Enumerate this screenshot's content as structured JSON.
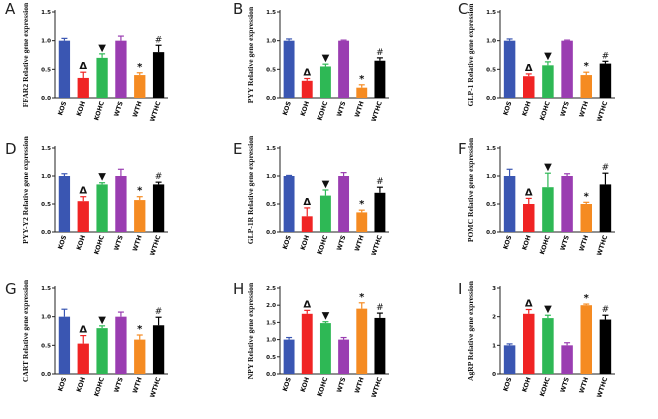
{
  "figure": {
    "colors": [
      "#3a56b2",
      "#f02424",
      "#2eb855",
      "#9a3db1",
      "#f58b22",
      "#000000"
    ],
    "marker_icons": [
      "delta-triangle-icon",
      "filled-down-triangle-icon",
      "asterisk-icon",
      "hash-icon"
    ]
  },
  "chart_data": [
    {
      "type": "bar",
      "panel": "A",
      "ylabel": "FFAR2 Relative gene expression",
      "categories": [
        "KOS",
        "KOH",
        "KOHC",
        "WTS",
        "WTH",
        "WTHC"
      ],
      "values": [
        1.0,
        0.35,
        0.7,
        1.0,
        0.4,
        0.8
      ],
      "errors": [
        0.04,
        0.1,
        0.07,
        0.08,
        0.04,
        0.12
      ],
      "markers": [
        "",
        "Δ",
        "▼",
        "",
        "*",
        "#"
      ],
      "yticks": [
        "0.0",
        "0.5",
        "1.0",
        "1.5"
      ],
      "ylim": [
        0,
        1.5
      ]
    },
    {
      "type": "bar",
      "panel": "B",
      "ylabel": "PYY Relative gene expression",
      "categories": [
        "KOS",
        "KOH",
        "KOHC",
        "WTS",
        "WTH",
        "WTHC"
      ],
      "values": [
        1.0,
        0.3,
        0.55,
        1.0,
        0.18,
        0.65
      ],
      "errors": [
        0.03,
        0.04,
        0.04,
        0.01,
        0.05,
        0.05
      ],
      "markers": [
        "",
        "Δ",
        "▼",
        "",
        "*",
        "#"
      ],
      "yticks": [
        "0.0",
        "0.5",
        "1.0",
        "1.5"
      ],
      "ylim": [
        0,
        1.5
      ]
    },
    {
      "type": "bar",
      "panel": "C",
      "ylabel": "GLP-1 Relative gene expression",
      "categories": [
        "KOS",
        "KOH",
        "KOHC",
        "WTS",
        "WTH",
        "WTHC"
      ],
      "values": [
        1.0,
        0.38,
        0.57,
        1.0,
        0.4,
        0.6
      ],
      "errors": [
        0.03,
        0.04,
        0.06,
        0.01,
        0.05,
        0.04
      ],
      "markers": [
        "",
        "Δ",
        "▼",
        "",
        "*",
        "#"
      ],
      "yticks": [
        "0.0",
        "0.5",
        "1.0",
        "1.5"
      ],
      "ylim": [
        0,
        1.5
      ]
    },
    {
      "type": "bar",
      "panel": "D",
      "ylabel": "PYY-Y2 Relative gene expression",
      "categories": [
        "KOS",
        "KOH",
        "KOHC",
        "WTS",
        "WTH",
        "WTHC"
      ],
      "values": [
        1.0,
        0.55,
        0.85,
        1.0,
        0.57,
        0.85
      ],
      "errors": [
        0.04,
        0.08,
        0.03,
        0.12,
        0.06,
        0.04
      ],
      "markers": [
        "",
        "Δ",
        "▼",
        "",
        "*",
        "#"
      ],
      "yticks": [
        "0.0",
        "0.5",
        "1.0",
        "1.5"
      ],
      "ylim": [
        0,
        1.5
      ]
    },
    {
      "type": "bar",
      "panel": "E",
      "ylabel": "GLP-1R Relative gene expression",
      "categories": [
        "KOS",
        "KOH",
        "KOHC",
        "WTS",
        "WTH",
        "WTHC"
      ],
      "values": [
        1.0,
        0.28,
        0.65,
        1.0,
        0.35,
        0.7
      ],
      "errors": [
        0.01,
        0.15,
        0.1,
        0.06,
        0.04,
        0.1
      ],
      "markers": [
        "",
        "Δ",
        "▼",
        "",
        "*",
        "#"
      ],
      "yticks": [
        "0.0",
        "0.5",
        "1.0",
        "1.5"
      ],
      "ylim": [
        0,
        1.5
      ]
    },
    {
      "type": "bar",
      "panel": "F",
      "ylabel": "POMC Relative gene expression",
      "categories": [
        "KOS",
        "KOH",
        "KOHC",
        "WTS",
        "WTH",
        "WTHC"
      ],
      "values": [
        1.0,
        0.5,
        0.8,
        1.0,
        0.5,
        0.85
      ],
      "errors": [
        0.12,
        0.1,
        0.25,
        0.04,
        0.03,
        0.2
      ],
      "markers": [
        "",
        "Δ",
        "▼",
        "",
        "*",
        "#"
      ],
      "yticks": [
        "0.0",
        "0.5",
        "1.0",
        "1.5"
      ],
      "ylim": [
        0,
        1.5
      ]
    },
    {
      "type": "bar",
      "panel": "G",
      "ylabel": "CART Relative gene expression",
      "categories": [
        "KOS",
        "KOH",
        "KOHC",
        "WTS",
        "WTH",
        "WTHC"
      ],
      "values": [
        1.0,
        0.53,
        0.8,
        1.0,
        0.6,
        0.85
      ],
      "errors": [
        0.13,
        0.14,
        0.04,
        0.08,
        0.08,
        0.14
      ],
      "markers": [
        "",
        "Δ",
        "▼",
        "",
        "*",
        "#"
      ],
      "yticks": [
        "0.0",
        "0.5",
        "1.0",
        "1.5"
      ],
      "ylim": [
        0,
        1.5
      ]
    },
    {
      "type": "bar",
      "panel": "H",
      "ylabel": "NPY Relative gene expression",
      "categories": [
        "KOS",
        "KOH",
        "KOHC",
        "WTS",
        "WTH",
        "WTHC"
      ],
      "values": [
        1.0,
        1.75,
        1.48,
        1.0,
        1.9,
        1.63
      ],
      "errors": [
        0.06,
        0.1,
        0.04,
        0.06,
        0.17,
        0.14
      ],
      "markers": [
        "",
        "Δ",
        "▼",
        "",
        "*",
        "#"
      ],
      "yticks": [
        "0.0",
        "0.5",
        "1.0",
        "1.5",
        "2.0",
        "2.5"
      ],
      "ylim": [
        0,
        2.5
      ]
    },
    {
      "type": "bar",
      "panel": "I",
      "ylabel": "AgRP Relative gene expression",
      "categories": [
        "KOS",
        "KOH",
        "KOHC",
        "WTS",
        "WTH",
        "WTHC"
      ],
      "values": [
        1.0,
        2.1,
        1.95,
        1.0,
        2.4,
        1.9
      ],
      "errors": [
        0.05,
        0.15,
        0.1,
        0.09,
        0.04,
        0.15
      ],
      "markers": [
        "",
        "Δ",
        "▼",
        "",
        "*",
        "#"
      ],
      "yticks": [
        "0",
        "1",
        "2",
        "3"
      ],
      "ylim": [
        0,
        3
      ]
    }
  ]
}
